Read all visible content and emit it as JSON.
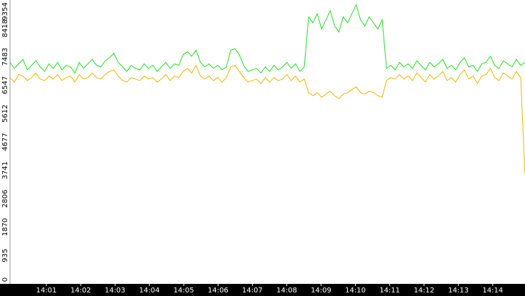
{
  "chart_data": {
    "type": "line",
    "xlim": [
      -0.06,
      14.94
    ],
    "xticks": [
      {
        "value": 1,
        "label": "14:01"
      },
      {
        "value": 2,
        "label": "14:02"
      },
      {
        "value": 3,
        "label": "14:03"
      },
      {
        "value": 4,
        "label": "14:04"
      },
      {
        "value": 5,
        "label": "14:05"
      },
      {
        "value": 6,
        "label": "14:06"
      },
      {
        "value": 7,
        "label": "14:07"
      },
      {
        "value": 8,
        "label": "14:08"
      },
      {
        "value": 9,
        "label": "14:09"
      },
      {
        "value": 10,
        "label": "14:10"
      },
      {
        "value": 11,
        "label": "14:11"
      },
      {
        "value": 12,
        "label": "14:12"
      },
      {
        "value": 13,
        "label": "14:13"
      },
      {
        "value": 14,
        "label": "14:14"
      }
    ],
    "ylim": [
      0,
      9354
    ],
    "yticks": [
      0,
      935,
      1870,
      2806,
      3741,
      4677,
      5612,
      6547,
      7483,
      8418,
      9354
    ],
    "series": [
      {
        "color": "#22dd22",
        "values": [
          7300,
          7100,
          7250,
          7400,
          7050,
          7200,
          7350,
          7150,
          7000,
          7250,
          7100,
          7300,
          7050,
          7200,
          7150,
          6950,
          7300,
          7100,
          7250,
          7400,
          7200,
          7150,
          7350,
          7450,
          7600,
          7300,
          7150,
          7000,
          7200,
          7100,
          7050,
          7250,
          7100,
          7200,
          7000,
          7150,
          7300,
          7100,
          7250,
          7200,
          7550,
          7650,
          7500,
          7700,
          7300,
          7150,
          7250,
          7100,
          7200,
          7050,
          7150,
          7700,
          7750,
          7550,
          7200,
          7000,
          7050,
          7100,
          6950,
          7150,
          7000,
          7200,
          7050,
          7150,
          7300,
          7100,
          7250,
          7000,
          7150,
          8800,
          8600,
          8900,
          8400,
          8700,
          9000,
          8500,
          8300,
          8800,
          8600,
          8900,
          9200,
          8700,
          8500,
          8800,
          8600,
          8400,
          8700,
          7100,
          7200,
          7050,
          7300,
          7150,
          7250,
          7100,
          7350,
          7200,
          7050,
          7300,
          7150,
          7250,
          7400,
          7100,
          7200,
          7050,
          7300,
          7450,
          7150,
          7200,
          7000,
          7250,
          7300,
          7500,
          7200,
          7100,
          7350,
          7250,
          7150,
          7400,
          7200,
          7300
        ]
      },
      {
        "color": "#f0b400",
        "values": [
          6800,
          6650,
          6900,
          6850,
          6700,
          6800,
          6950,
          6750,
          6700,
          6850,
          6750,
          6900,
          6700,
          6800,
          6850,
          6650,
          6900,
          6750,
          6800,
          6950,
          6800,
          6750,
          6900,
          7000,
          7050,
          6850,
          6700,
          6650,
          6800,
          6750,
          6700,
          6850,
          6750,
          6800,
          6650,
          6750,
          6900,
          6700,
          6850,
          6800,
          7000,
          7100,
          6950,
          7200,
          6850,
          6750,
          6850,
          6700,
          6800,
          6650,
          6800,
          7150,
          7200,
          7000,
          6800,
          6650,
          6700,
          6750,
          6600,
          6800,
          6650,
          6800,
          6700,
          6750,
          6900,
          6700,
          6850,
          6650,
          6750,
          6300,
          6200,
          6300,
          6150,
          6250,
          6350,
          6200,
          6100,
          6250,
          6300,
          6400,
          6500,
          6300,
          6250,
          6350,
          6300,
          6200,
          6150,
          6700,
          6800,
          6750,
          6900,
          6750,
          6850,
          6700,
          6950,
          6800,
          6650,
          6900,
          6750,
          6850,
          7000,
          6700,
          6800,
          6650,
          6900,
          7050,
          6750,
          6850,
          6600,
          6850,
          6900,
          7100,
          6800,
          6700,
          6950,
          6850,
          6750,
          7000,
          6800,
          3600
        ]
      }
    ]
  }
}
